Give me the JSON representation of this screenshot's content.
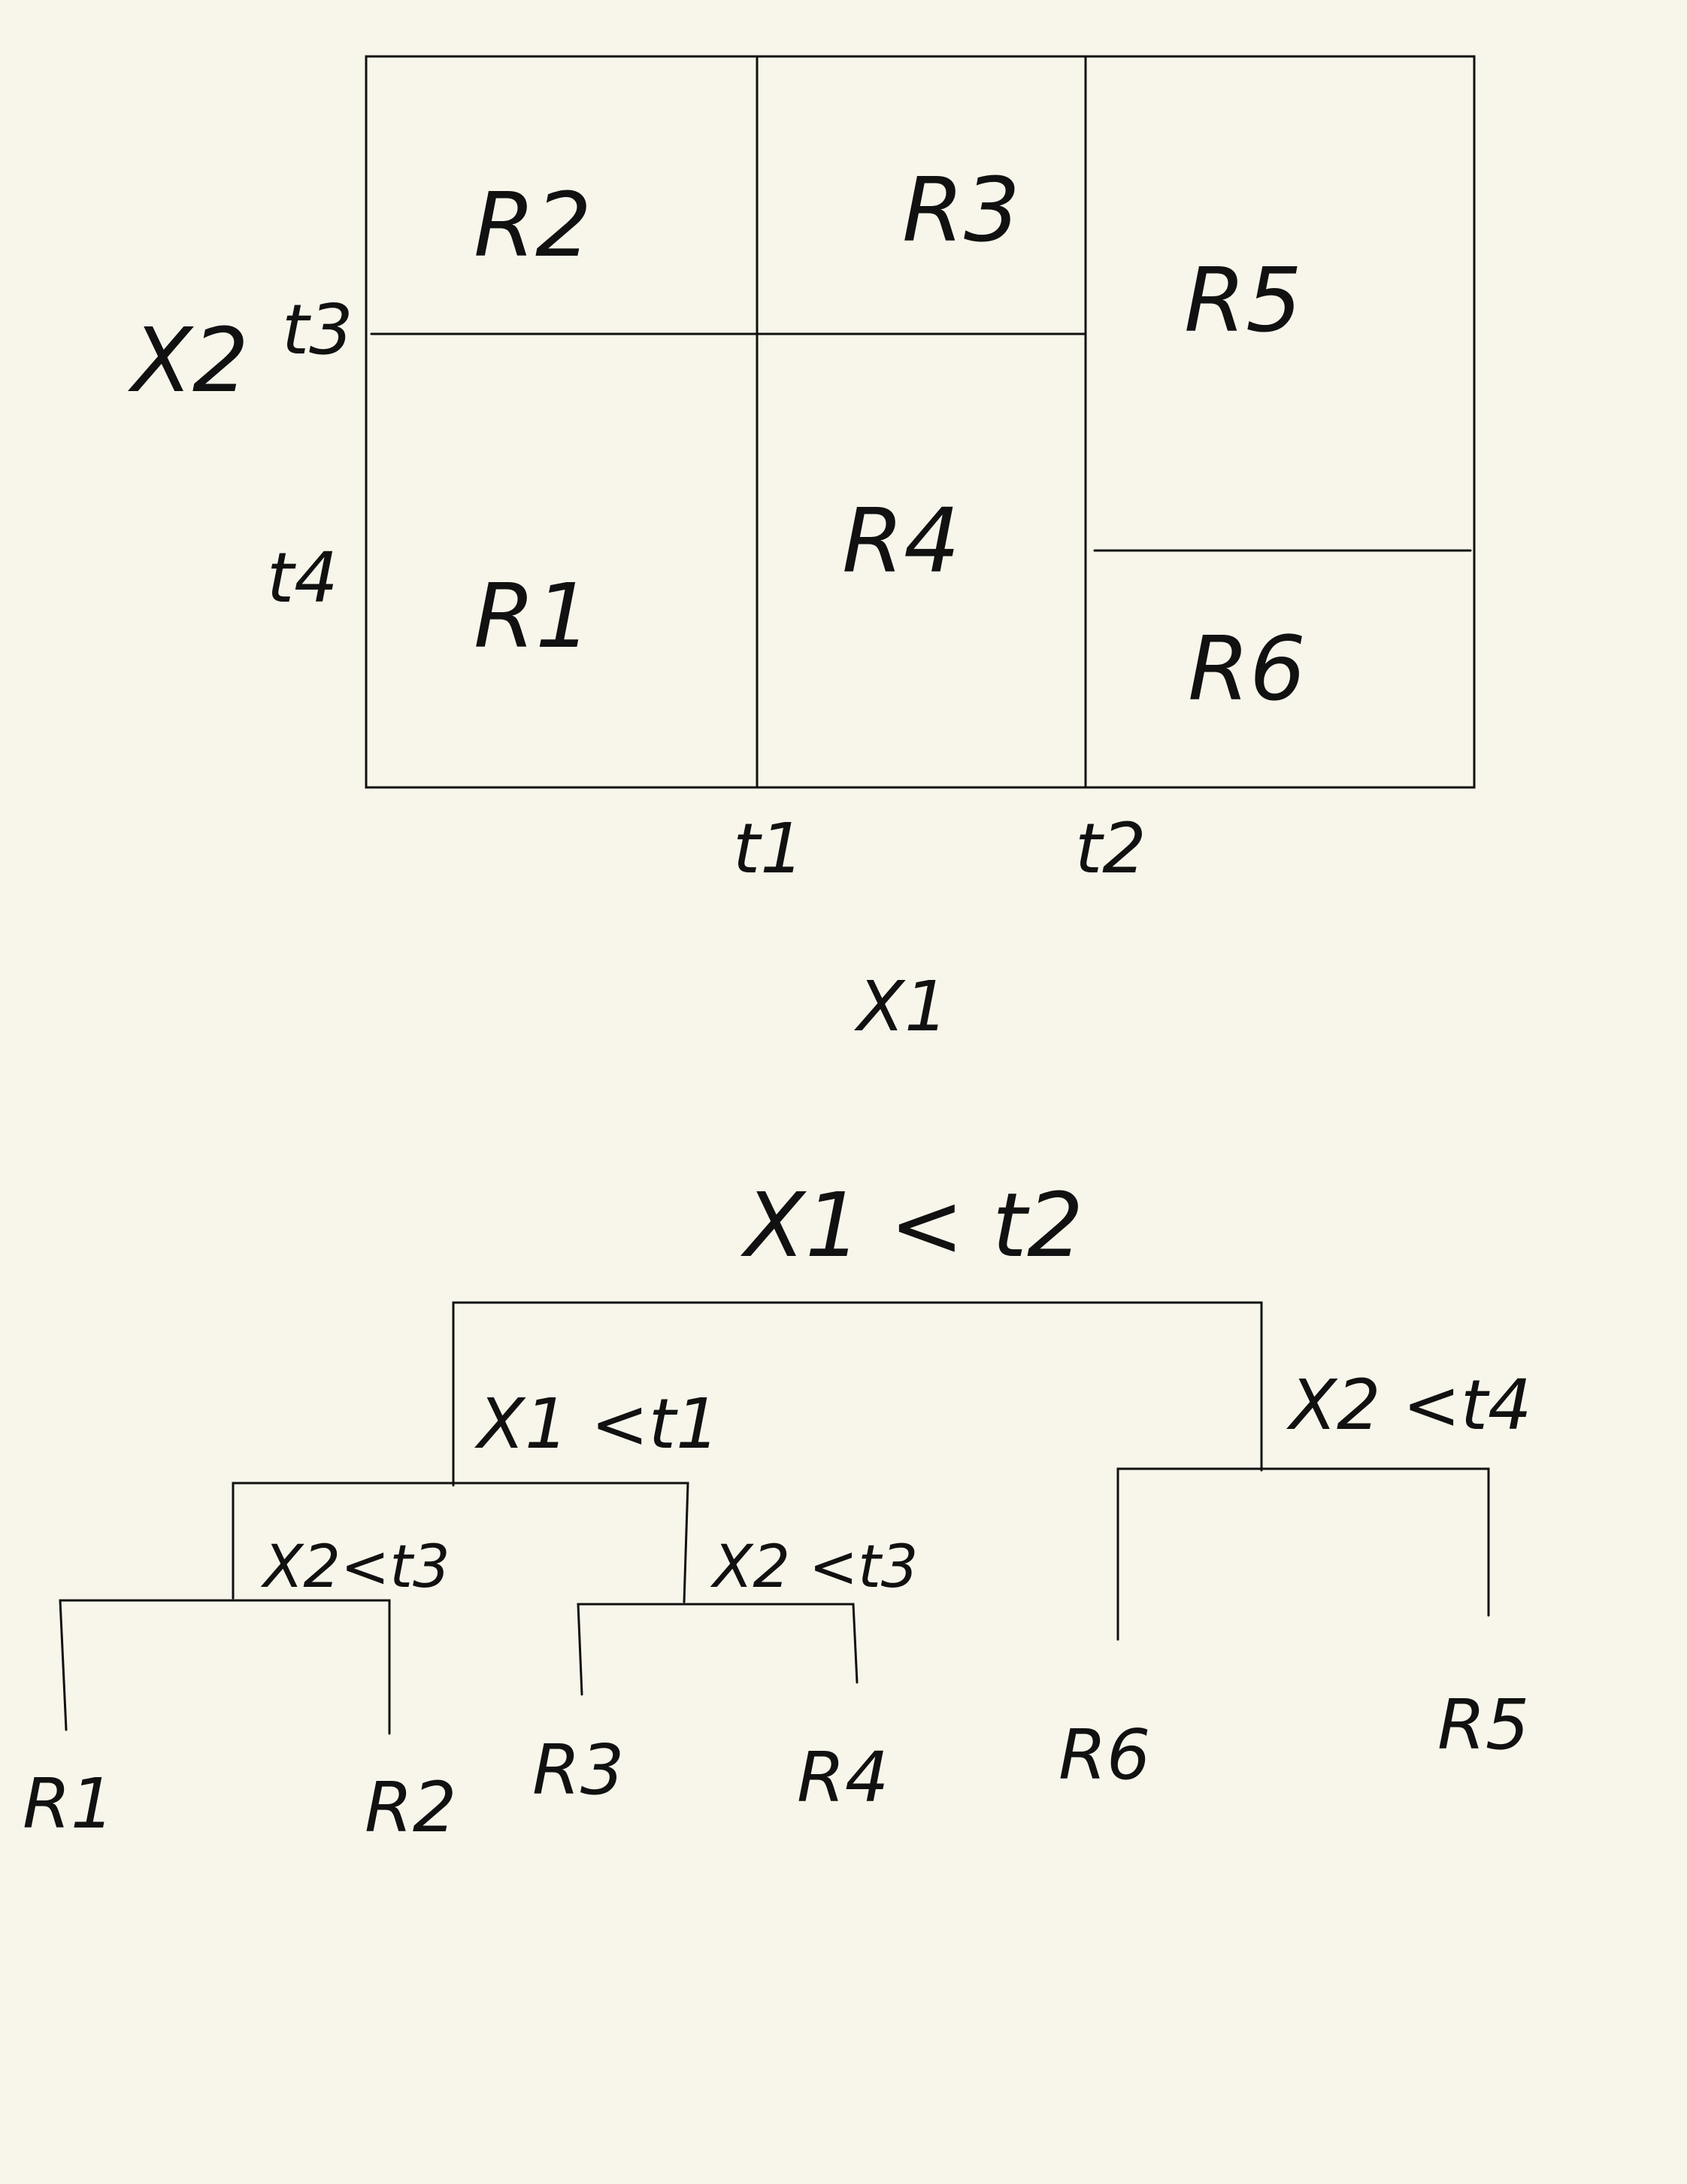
{
  "partition": {
    "axis_y": "X2",
    "axis_x": "X1",
    "ticks": {
      "t1": "t1",
      "t2": "t2",
      "t3": "t3",
      "t4": "t4"
    },
    "regions": {
      "r1": "R1",
      "r2": "R2",
      "r3": "R3",
      "r4": "R4",
      "r5": "R5",
      "r6": "R6"
    }
  },
  "tree": {
    "root_split": "X1 < t2",
    "left_split": "X1 <t1",
    "right_split": "X2 <t4",
    "left_left_split": "X2<t3",
    "left_right_split": "X2 <t3",
    "leaves": {
      "r1": "R1",
      "r2": "R2",
      "r3": "R3",
      "r4": "R4",
      "r6": "R6",
      "r5": "R5"
    }
  }
}
